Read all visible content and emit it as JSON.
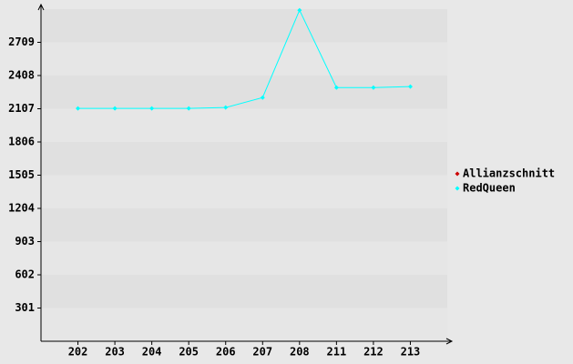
{
  "chart_data": {
    "type": "line",
    "categories": [
      "202",
      "203",
      "204",
      "205",
      "206",
      "207",
      "208",
      "211",
      "212",
      "213"
    ],
    "series": [
      {
        "name": "Allianzschnitt",
        "color": "#cc0000",
        "values": [
          null,
          null,
          null,
          null,
          null,
          null,
          null,
          null,
          null,
          null
        ]
      },
      {
        "name": "RedQueen",
        "color": "#00ffff",
        "values": [
          2110,
          2110,
          2110,
          2110,
          2118,
          2208,
          3000,
          2299,
          2299,
          2308
        ]
      }
    ],
    "ylim": [
      0,
      3010
    ],
    "yticks": [
      301,
      602,
      903,
      1204,
      1505,
      1806,
      2107,
      2408,
      2709
    ],
    "grid": true,
    "legend": "right"
  }
}
